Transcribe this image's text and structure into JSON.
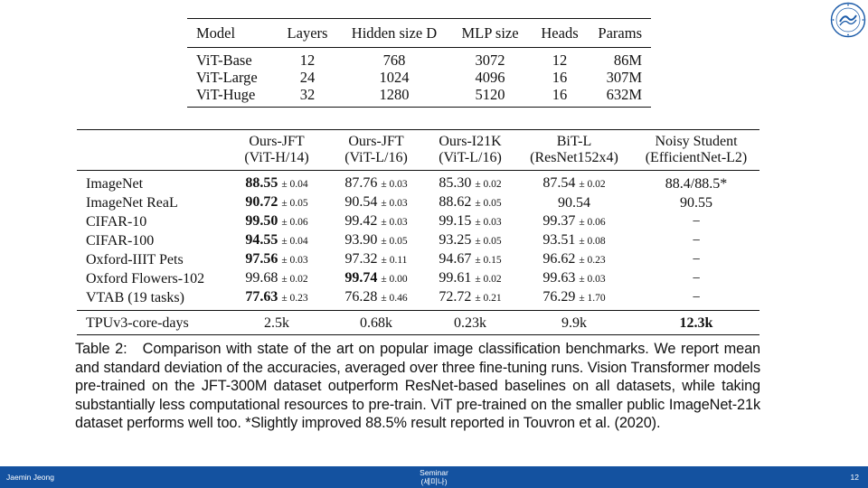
{
  "table1": {
    "headers": [
      "Model",
      "Layers",
      "Hidden size D",
      "MLP size",
      "Heads",
      "Params"
    ],
    "rows": [
      [
        "ViT-Base",
        "12",
        "768",
        "3072",
        "12",
        "86M"
      ],
      [
        "ViT-Large",
        "24",
        "1024",
        "4096",
        "16",
        "307M"
      ],
      [
        "ViT-Huge",
        "32",
        "1280",
        "5120",
        "16",
        "632M"
      ]
    ]
  },
  "table2": {
    "columns": [
      {
        "line1": "Ours-JFT",
        "line2": "(ViT-H/14)"
      },
      {
        "line1": "Ours-JFT",
        "line2": "(ViT-L/16)"
      },
      {
        "line1": "Ours-I21K",
        "line2": "(ViT-L/16)"
      },
      {
        "line1": "BiT-L",
        "line2": "(ResNet152x4)"
      },
      {
        "line1": "Noisy Student",
        "line2": "(EfficientNet-L2)"
      }
    ],
    "rows": [
      {
        "dataset": "ImageNet",
        "cells": [
          {
            "v": "88.55",
            "sd": "± 0.04"
          },
          {
            "v": "87.76",
            "sd": "± 0.03"
          },
          {
            "v": "85.30",
            "sd": "± 0.02"
          },
          {
            "v": "87.54",
            "sd": "± 0.02"
          },
          {
            "v": "88.4/88.5*",
            "sd": ""
          }
        ]
      },
      {
        "dataset": "ImageNet ReaL",
        "cells": [
          {
            "v": "90.72",
            "sd": "± 0.05"
          },
          {
            "v": "90.54",
            "sd": "± 0.03"
          },
          {
            "v": "88.62",
            "sd": "± 0.05"
          },
          {
            "v": "90.54",
            "sd": ""
          },
          {
            "v": "90.55",
            "sd": ""
          }
        ]
      },
      {
        "dataset": "CIFAR-10",
        "cells": [
          {
            "v": "99.50",
            "sd": "± 0.06"
          },
          {
            "v": "99.42",
            "sd": "± 0.03"
          },
          {
            "v": "99.15",
            "sd": "± 0.03"
          },
          {
            "v": "99.37",
            "sd": "± 0.06"
          },
          {
            "v": "−",
            "sd": ""
          }
        ]
      },
      {
        "dataset": "CIFAR-100",
        "cells": [
          {
            "v": "94.55",
            "sd": "± 0.04"
          },
          {
            "v": "93.90",
            "sd": "± 0.05"
          },
          {
            "v": "93.25",
            "sd": "± 0.05"
          },
          {
            "v": "93.51",
            "sd": "± 0.08"
          },
          {
            "v": "−",
            "sd": ""
          }
        ]
      },
      {
        "dataset": "Oxford-IIIT Pets",
        "cells": [
          {
            "v": "97.56",
            "sd": "± 0.03"
          },
          {
            "v": "97.32",
            "sd": "± 0.11"
          },
          {
            "v": "94.67",
            "sd": "± 0.15"
          },
          {
            "v": "96.62",
            "sd": "± 0.23"
          },
          {
            "v": "−",
            "sd": ""
          }
        ]
      },
      {
        "dataset": "Oxford Flowers-102",
        "cells": [
          {
            "v": "99.68",
            "sd": "± 0.02"
          },
          {
            "v": "99.74",
            "sd": "± 0.00"
          },
          {
            "v": "99.61",
            "sd": "± 0.02"
          },
          {
            "v": "99.63",
            "sd": "± 0.03"
          },
          {
            "v": "−",
            "sd": ""
          }
        ]
      },
      {
        "dataset": "VTAB (19 tasks)",
        "cells": [
          {
            "v": "77.63",
            "sd": "± 0.23"
          },
          {
            "v": "76.28",
            "sd": "± 0.46"
          },
          {
            "v": "72.72",
            "sd": "± 0.21"
          },
          {
            "v": "76.29",
            "sd": "± 1.70"
          },
          {
            "v": "−",
            "sd": ""
          }
        ]
      }
    ],
    "tpu": {
      "label": "TPUv3-core-days",
      "values": [
        "2.5k",
        "0.68k",
        "0.23k",
        "9.9k",
        "12.3k"
      ]
    }
  },
  "caption": {
    "label": "Table 2:",
    "text": "Comparison with state of the art on popular image classification benchmarks. We report mean and standard deviation of the accuracies, averaged over three fine-tuning runs. Vision Transformer models pre-trained on the JFT-300M dataset outperform ResNet-based baselines on all datasets, while taking substantially less computational resources to pre-train. ViT pre-trained on the smaller public ImageNet-21k dataset performs well too. *Slightly improved 88.5% result reported in Touvron et al. (2020)."
  },
  "footer": {
    "presenter": "Jaemin Jeong",
    "center_line1": "Seminar",
    "center_line2": "(세미나)",
    "page": "12"
  },
  "colors": {
    "footer_bg": "#1452a0",
    "logo": "#1a5aa8"
  },
  "logo_icon": "university-seal-icon"
}
